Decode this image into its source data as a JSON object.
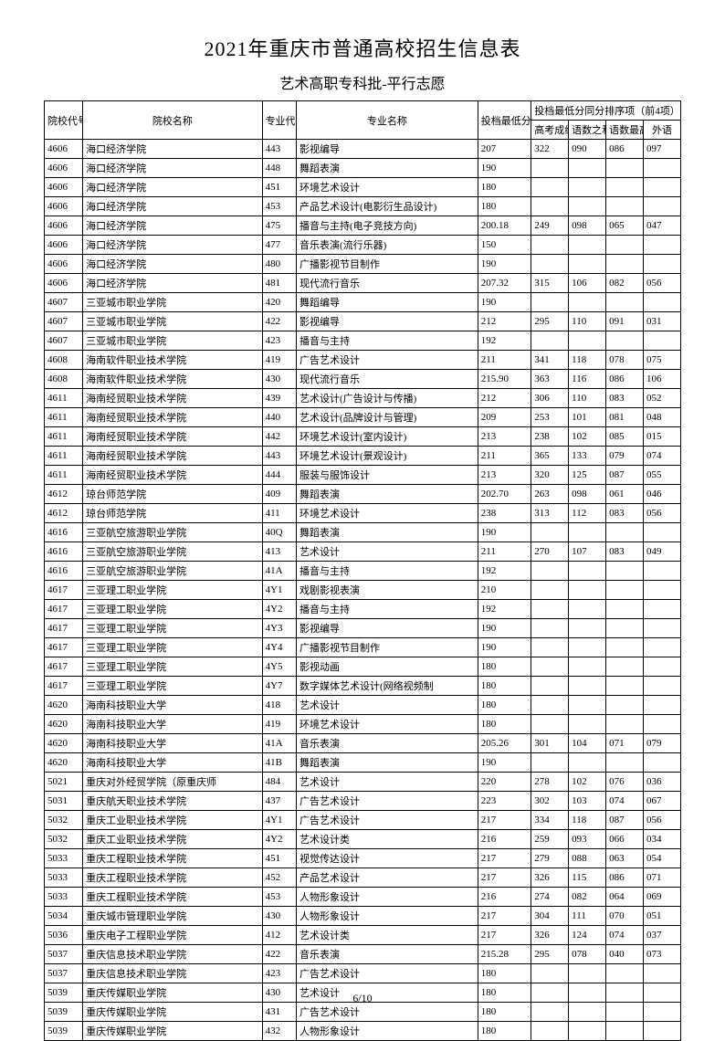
{
  "title": "2021年重庆市普通高校招生信息表",
  "subtitle": "艺术高职专科批-平行志愿",
  "page_footer": "6/10",
  "watermark": "",
  "headers": {
    "school_code": "院校代号",
    "school_name": "院校名称",
    "major_code": "专业代号",
    "major_name": "专业名称",
    "min_score": "投档最低分",
    "rank_group": "投档最低分同分排序项（前4项）",
    "gaokao": "高考成绩",
    "yushu_sum": "语数之和",
    "yushu_max": "语数最高",
    "foreign": "外语"
  },
  "rows": [
    [
      "4606",
      "海口经济学院",
      "443",
      "影视编导",
      "207",
      "322",
      "090",
      "086",
      "097"
    ],
    [
      "4606",
      "海口经济学院",
      "448",
      "舞蹈表演",
      "190",
      "",
      "",
      "",
      ""
    ],
    [
      "4606",
      "海口经济学院",
      "451",
      "环境艺术设计",
      "180",
      "",
      "",
      "",
      ""
    ],
    [
      "4606",
      "海口经济学院",
      "453",
      "产品艺术设计(电影衍生品设计)",
      "180",
      "",
      "",
      "",
      ""
    ],
    [
      "4606",
      "海口经济学院",
      "475",
      "播音与主持(电子竞技方向)",
      "200.18",
      "249",
      "098",
      "065",
      "047"
    ],
    [
      "4606",
      "海口经济学院",
      "477",
      "音乐表演(流行乐器)",
      "150",
      "",
      "",
      "",
      ""
    ],
    [
      "4606",
      "海口经济学院",
      "480",
      "广播影视节目制作",
      "190",
      "",
      "",
      "",
      ""
    ],
    [
      "4606",
      "海口经济学院",
      "481",
      "现代流行音乐",
      "207.32",
      "315",
      "106",
      "082",
      "056"
    ],
    [
      "4607",
      "三亚城市职业学院",
      "420",
      "舞蹈编导",
      "190",
      "",
      "",
      "",
      ""
    ],
    [
      "4607",
      "三亚城市职业学院",
      "422",
      "影视编导",
      "212",
      "295",
      "110",
      "091",
      "031"
    ],
    [
      "4607",
      "三亚城市职业学院",
      "423",
      "播音与主持",
      "192",
      "",
      "",
      "",
      ""
    ],
    [
      "4608",
      "海南软件职业技术学院",
      "419",
      "广告艺术设计",
      "211",
      "341",
      "118",
      "078",
      "075"
    ],
    [
      "4608",
      "海南软件职业技术学院",
      "430",
      "现代流行音乐",
      "215.90",
      "363",
      "116",
      "086",
      "106"
    ],
    [
      "4611",
      "海南经贸职业技术学院",
      "439",
      "艺术设计(广告设计与传播)",
      "212",
      "306",
      "110",
      "083",
      "052"
    ],
    [
      "4611",
      "海南经贸职业技术学院",
      "440",
      "艺术设计(品牌设计与管理)",
      "209",
      "253",
      "101",
      "081",
      "048"
    ],
    [
      "4611",
      "海南经贸职业技术学院",
      "442",
      "环境艺术设计(室内设计)",
      "213",
      "238",
      "102",
      "085",
      "015"
    ],
    [
      "4611",
      "海南经贸职业技术学院",
      "443",
      "环境艺术设计(景观设计)",
      "211",
      "365",
      "133",
      "079",
      "074"
    ],
    [
      "4611",
      "海南经贸职业技术学院",
      "444",
      "服装与服饰设计",
      "213",
      "320",
      "125",
      "087",
      "055"
    ],
    [
      "4612",
      "琼台师范学院",
      "409",
      "舞蹈表演",
      "202.70",
      "263",
      "098",
      "061",
      "046"
    ],
    [
      "4612",
      "琼台师范学院",
      "411",
      "环境艺术设计",
      "238",
      "313",
      "112",
      "083",
      "056"
    ],
    [
      "4616",
      "三亚航空旅游职业学院",
      "40Q",
      "舞蹈表演",
      "190",
      "",
      "",
      "",
      ""
    ],
    [
      "4616",
      "三亚航空旅游职业学院",
      "413",
      "艺术设计",
      "211",
      "270",
      "107",
      "083",
      "049"
    ],
    [
      "4616",
      "三亚航空旅游职业学院",
      "41A",
      "播音与主持",
      "192",
      "",
      "",
      "",
      ""
    ],
    [
      "4617",
      "三亚理工职业学院",
      "4Y1",
      "戏剧影视表演",
      "210",
      "",
      "",
      "",
      ""
    ],
    [
      "4617",
      "三亚理工职业学院",
      "4Y2",
      "播音与主持",
      "192",
      "",
      "",
      "",
      ""
    ],
    [
      "4617",
      "三亚理工职业学院",
      "4Y3",
      "影视编导",
      "190",
      "",
      "",
      "",
      ""
    ],
    [
      "4617",
      "三亚理工职业学院",
      "4Y4",
      "广播影视节目制作",
      "190",
      "",
      "",
      "",
      ""
    ],
    [
      "4617",
      "三亚理工职业学院",
      "4Y5",
      "影视动画",
      "180",
      "",
      "",
      "",
      ""
    ],
    [
      "4617",
      "三亚理工职业学院",
      "4Y7",
      "数字媒体艺术设计(网络视频制",
      "180",
      "",
      "",
      "",
      ""
    ],
    [
      "4620",
      "海南科技职业大学",
      "418",
      "艺术设计",
      "180",
      "",
      "",
      "",
      ""
    ],
    [
      "4620",
      "海南科技职业大学",
      "419",
      "环境艺术设计",
      "180",
      "",
      "",
      "",
      ""
    ],
    [
      "4620",
      "海南科技职业大学",
      "41A",
      "音乐表演",
      "205.26",
      "301",
      "104",
      "071",
      "079"
    ],
    [
      "4620",
      "海南科技职业大学",
      "41B",
      "舞蹈表演",
      "190",
      "",
      "",
      "",
      ""
    ],
    [
      "5021",
      "重庆对外经贸学院（原重庆师",
      "484",
      "艺术设计",
      "220",
      "278",
      "102",
      "076",
      "036"
    ],
    [
      "5031",
      "重庆航天职业技术学院",
      "437",
      "广告艺术设计",
      "223",
      "302",
      "103",
      "074",
      "067"
    ],
    [
      "5032",
      "重庆工业职业技术学院",
      "4Y1",
      "广告艺术设计",
      "217",
      "334",
      "118",
      "087",
      "056"
    ],
    [
      "5032",
      "重庆工业职业技术学院",
      "4Y2",
      "艺术设计类",
      "216",
      "259",
      "093",
      "066",
      "034"
    ],
    [
      "5033",
      "重庆工程职业技术学院",
      "451",
      "视觉传达设计",
      "217",
      "279",
      "088",
      "063",
      "054"
    ],
    [
      "5033",
      "重庆工程职业技术学院",
      "452",
      "产品艺术设计",
      "217",
      "326",
      "115",
      "086",
      "071"
    ],
    [
      "5033",
      "重庆工程职业技术学院",
      "453",
      "人物形象设计",
      "216",
      "274",
      "082",
      "064",
      "069"
    ],
    [
      "5034",
      "重庆城市管理职业学院",
      "430",
      "人物形象设计",
      "217",
      "304",
      "111",
      "070",
      "051"
    ],
    [
      "5036",
      "重庆电子工程职业学院",
      "412",
      "艺术设计类",
      "217",
      "326",
      "124",
      "074",
      "037"
    ],
    [
      "5037",
      "重庆信息技术职业学院",
      "422",
      "音乐表演",
      "215.28",
      "295",
      "078",
      "040",
      "073"
    ],
    [
      "5037",
      "重庆信息技术职业学院",
      "423",
      "广告艺术设计",
      "180",
      "",
      "",
      "",
      ""
    ],
    [
      "5039",
      "重庆传媒职业学院",
      "430",
      "艺术设计",
      "180",
      "",
      "",
      "",
      ""
    ],
    [
      "5039",
      "重庆传媒职业学院",
      "431",
      "广告艺术设计",
      "180",
      "",
      "",
      "",
      ""
    ],
    [
      "5039",
      "重庆传媒职业学院",
      "432",
      "人物形象设计",
      "180",
      "",
      "",
      "",
      ""
    ]
  ]
}
